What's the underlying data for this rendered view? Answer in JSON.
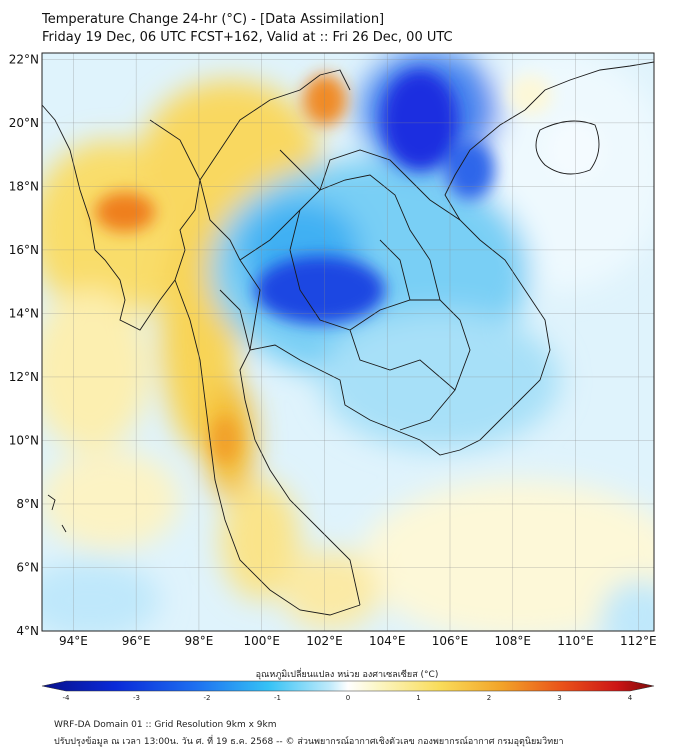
{
  "header": {
    "title": "Temperature Change 24-hr (°C) - [Data Assimilation]",
    "subtitle": "Friday 19 Dec, 06 UTC FCST+162, Valid at :: Fri 26 Dec, 00 UTC"
  },
  "map": {
    "lon_range": [
      93,
      112.5
    ],
    "lat_range": [
      4,
      22.2
    ],
    "lon_ticks": [
      "94°E",
      "96°E",
      "98°E",
      "100°E",
      "102°E",
      "104°E",
      "106°E",
      "108°E",
      "110°E",
      "112°E"
    ],
    "lat_ticks": [
      "4°N",
      "6°N",
      "8°N",
      "10°N",
      "12°N",
      "14°N",
      "16°N",
      "18°N",
      "20°N",
      "22°N"
    ],
    "grid": true,
    "colors": {
      "cold_strong": "#1c2fe0",
      "cold": "#3aa8f0",
      "cool_light": "#bfe8fb",
      "neutral": "#ffffff",
      "warm_light": "#fbf1b0",
      "warm": "#f7c63c",
      "hot": "#ee6a1a"
    }
  },
  "colorbar": {
    "title": "อุณหภูมิเปลี่ยนแปลง หน่วย องศาเซลเซียส (°C)",
    "ticks": [
      "-4",
      "-3",
      "-2",
      "-1",
      "0",
      "1",
      "2",
      "3",
      "4"
    ],
    "range": [
      -4,
      4
    ]
  },
  "footer": {
    "line1": "WRF-DA Domain 01 :: Grid Resolution 9km x 9km",
    "line2": "ปรับปรุงข้อมูล ณ เวลา 13:00น. วัน ศ. ที่ 19 ธ.ค. 2568 -- © ส่วนพยากรณ์อากาศเชิงตัวเลข กองพยากรณ์อากาศ กรมอุตุนิยมวิทยา"
  }
}
